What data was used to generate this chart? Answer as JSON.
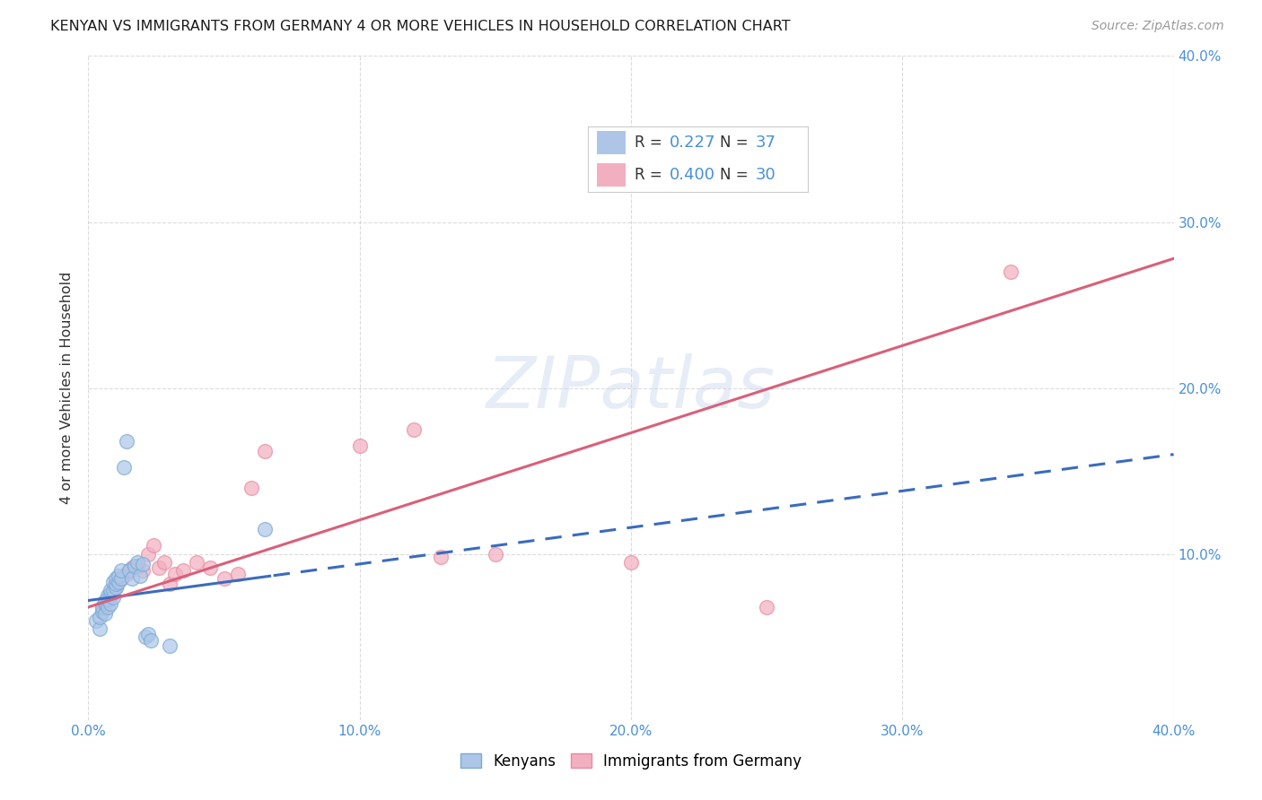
{
  "title": "KENYAN VS IMMIGRANTS FROM GERMANY 4 OR MORE VEHICLES IN HOUSEHOLD CORRELATION CHART",
  "source": "Source: ZipAtlas.com",
  "ylabel": "4 or more Vehicles in Household",
  "xlim": [
    0.0,
    0.4
  ],
  "ylim": [
    0.0,
    0.4
  ],
  "xtick_vals": [
    0.0,
    0.1,
    0.2,
    0.3,
    0.4
  ],
  "xtick_labels": [
    "0.0%",
    "10.0%",
    "20.0%",
    "30.0%",
    "40.0%"
  ],
  "ytick_vals": [
    0.1,
    0.2,
    0.3,
    0.4
  ],
  "ytick_labels": [
    "10.0%",
    "20.0%",
    "30.0%",
    "40.0%"
  ],
  "kenyan_R": "0.227",
  "kenyan_N": "37",
  "germany_R": "0.400",
  "germany_N": "30",
  "kenyan_color": "#adc6e8",
  "germany_color": "#f2afc0",
  "kenyan_line_color": "#3a6bbf",
  "germany_line_color": "#d9607a",
  "kenyan_scatter_edge": "#7aaad4",
  "germany_scatter_edge": "#e88aa0",
  "legend_label_kenyan": "Kenyans",
  "legend_label_germany": "Immigrants from Germany",
  "kenyan_x": [
    0.003,
    0.004,
    0.004,
    0.005,
    0.005,
    0.006,
    0.006,
    0.006,
    0.007,
    0.007,
    0.007,
    0.008,
    0.008,
    0.008,
    0.009,
    0.009,
    0.009,
    0.01,
    0.01,
    0.01,
    0.011,
    0.011,
    0.012,
    0.012,
    0.013,
    0.014,
    0.015,
    0.016,
    0.017,
    0.018,
    0.019,
    0.02,
    0.021,
    0.022,
    0.023,
    0.065,
    0.03
  ],
  "kenyan_y": [
    0.06,
    0.055,
    0.062,
    0.065,
    0.068,
    0.064,
    0.07,
    0.072,
    0.068,
    0.073,
    0.075,
    0.07,
    0.076,
    0.078,
    0.074,
    0.078,
    0.083,
    0.08,
    0.082,
    0.085,
    0.083,
    0.087,
    0.085,
    0.09,
    0.152,
    0.168,
    0.09,
    0.085,
    0.093,
    0.095,
    0.087,
    0.094,
    0.05,
    0.052,
    0.048,
    0.115,
    0.045
  ],
  "germany_x": [
    0.005,
    0.007,
    0.008,
    0.01,
    0.012,
    0.014,
    0.015,
    0.016,
    0.018,
    0.02,
    0.022,
    0.024,
    0.026,
    0.028,
    0.03,
    0.032,
    0.035,
    0.04,
    0.045,
    0.05,
    0.055,
    0.06,
    0.065,
    0.1,
    0.12,
    0.15,
    0.2,
    0.25,
    0.34,
    0.13
  ],
  "germany_y": [
    0.068,
    0.072,
    0.075,
    0.08,
    0.085,
    0.088,
    0.09,
    0.092,
    0.093,
    0.09,
    0.1,
    0.105,
    0.092,
    0.095,
    0.082,
    0.088,
    0.09,
    0.095,
    0.092,
    0.085,
    0.088,
    0.14,
    0.162,
    0.165,
    0.175,
    0.1,
    0.095,
    0.068,
    0.27,
    0.098
  ],
  "kenyan_line_start": 0.0,
  "kenyan_line_solid_end": 0.065,
  "kenyan_line_end": 0.4,
  "germany_line_start": 0.0,
  "germany_line_end": 0.4,
  "kenyan_line_intercept": 0.072,
  "kenyan_line_slope": 0.32,
  "germany_line_intercept": 0.068,
  "germany_line_slope": 0.55,
  "background_color": "#ffffff",
  "grid_color": "#cccccc"
}
